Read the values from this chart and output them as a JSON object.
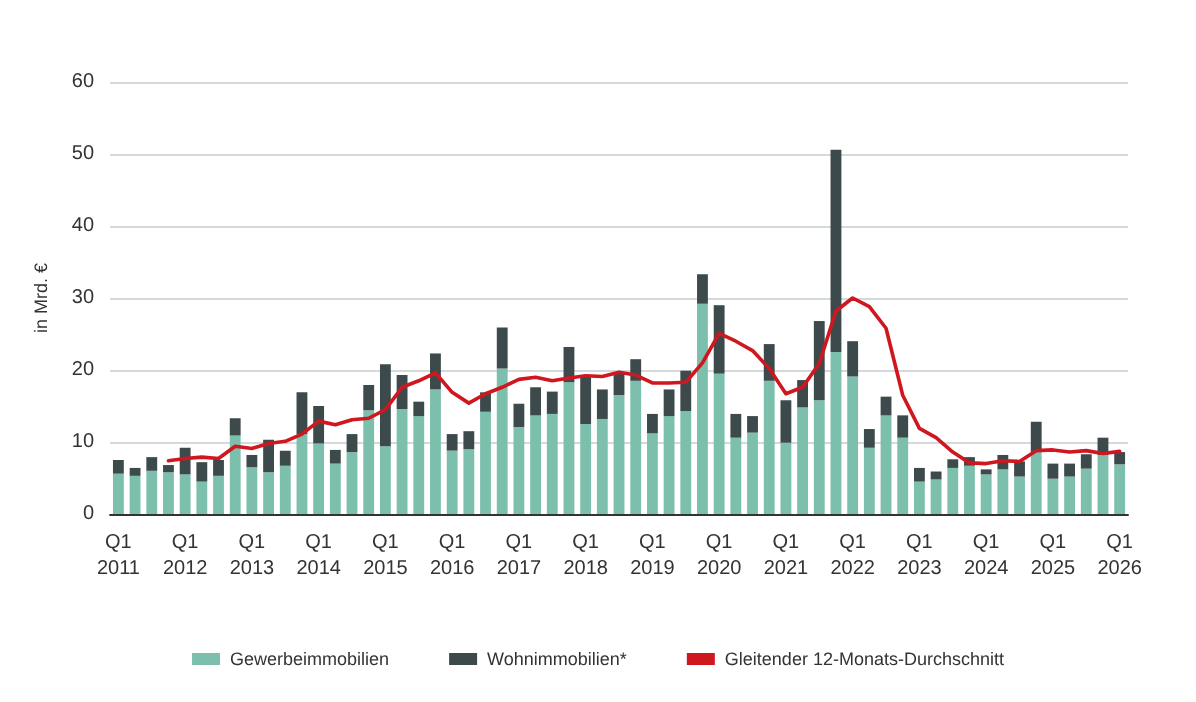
{
  "chart_data": {
    "type": "bar",
    "stacked": true,
    "ylabel": "in Mrd. €",
    "categories": [
      "Q1\n2011",
      null,
      null,
      null,
      "Q1\n2012",
      null,
      null,
      null,
      "Q1\n2013",
      null,
      null,
      null,
      "Q1\n2014",
      null,
      null,
      null,
      "Q1\n2015",
      null,
      null,
      null,
      "Q1\n2016",
      null,
      null,
      null,
      "Q1\n2017",
      null,
      null,
      null,
      "Q1\n2018",
      null,
      null,
      null,
      "Q1\n2019",
      null,
      null,
      null,
      "Q1\n2020",
      null,
      null,
      null,
      "Q1\n2021",
      null,
      null,
      null,
      "Q1\n2022",
      null,
      null,
      null,
      "Q1\n2023",
      null,
      null,
      null,
      "Q1\n2024",
      null,
      null,
      null,
      "Q1\n2025",
      null,
      null,
      null,
      "Q1\n2026"
    ],
    "series": [
      {
        "name": "Gewerbeimmobilien",
        "color": "#7dbfad",
        "values": [
          5.6,
          5.3,
          6.0,
          5.8,
          5.5,
          4.5,
          5.3,
          10.9,
          6.5,
          5.8,
          6.7,
          11.1,
          9.8,
          7.0,
          8.6,
          14.4,
          9.4,
          14.6,
          13.6,
          17.3,
          8.8,
          9.0,
          14.2,
          20.2,
          12.1,
          13.7,
          13.9,
          18.3,
          12.5,
          13.2,
          16.5,
          18.5,
          11.2,
          13.6,
          14.3,
          29.2,
          19.5,
          10.6,
          11.3,
          18.5,
          9.9,
          14.8,
          15.8,
          22.5,
          19.1,
          9.2,
          13.7,
          10.6,
          4.5,
          4.8,
          6.4,
          6.7,
          5.5,
          6.2,
          5.2,
          8.6,
          4.9,
          5.2,
          6.3,
          8.2,
          6.9
        ]
      },
      {
        "name": "Wohnimmobilien*",
        "color": "#3d4a4c",
        "values": [
          1.9,
          1.1,
          1.9,
          1.0,
          3.7,
          2.7,
          2.2,
          2.4,
          1.7,
          4.5,
          2.1,
          5.8,
          5.2,
          1.9,
          2.5,
          3.5,
          11.4,
          4.7,
          2.0,
          5.0,
          2.3,
          2.5,
          2.7,
          5.7,
          3.2,
          3.9,
          3.1,
          4.9,
          6.6,
          4.1,
          3.2,
          3.0,
          2.7,
          3.7,
          5.6,
          4.1,
          9.5,
          3.3,
          2.3,
          5.1,
          5.9,
          3.8,
          11.0,
          28.1,
          4.9,
          2.6,
          2.6,
          3.1,
          1.9,
          1.1,
          1.2,
          1.2,
          0.7,
          2.0,
          2.1,
          4.2,
          2.1,
          1.8,
          2.0,
          2.4,
          1.7
        ]
      },
      {
        "name": "Gleitender 12-Monats-Durchschnitt",
        "type": "line",
        "color": "#d0161e",
        "values": [
          null,
          null,
          null,
          7.4,
          7.7,
          7.9,
          7.7,
          9.4,
          9.1,
          9.8,
          10.1,
          11.1,
          12.9,
          12.4,
          13.1,
          13.3,
          14.5,
          17.6,
          18.5,
          19.6,
          16.9,
          15.4,
          16.7,
          17.6,
          18.7,
          19.0,
          18.5,
          18.9,
          19.2,
          19.1,
          19.7,
          19.3,
          18.2,
          18.2,
          18.3,
          21.0,
          25.1,
          24.0,
          22.7,
          20.2,
          16.7,
          17.6,
          20.9,
          28.2,
          30.0,
          28.8,
          25.8,
          16.5,
          11.9,
          10.6,
          8.6,
          7.1,
          7.0,
          7.4,
          7.3,
          8.8,
          8.9,
          8.6,
          8.8,
          8.4,
          8.7
        ]
      }
    ],
    "ylim": [
      0,
      60
    ],
    "yticks": [
      0,
      10,
      20,
      30,
      40,
      50,
      60
    ],
    "grid": "y",
    "legend": "bottom",
    "marker": "none",
    "line_style": "solid"
  }
}
